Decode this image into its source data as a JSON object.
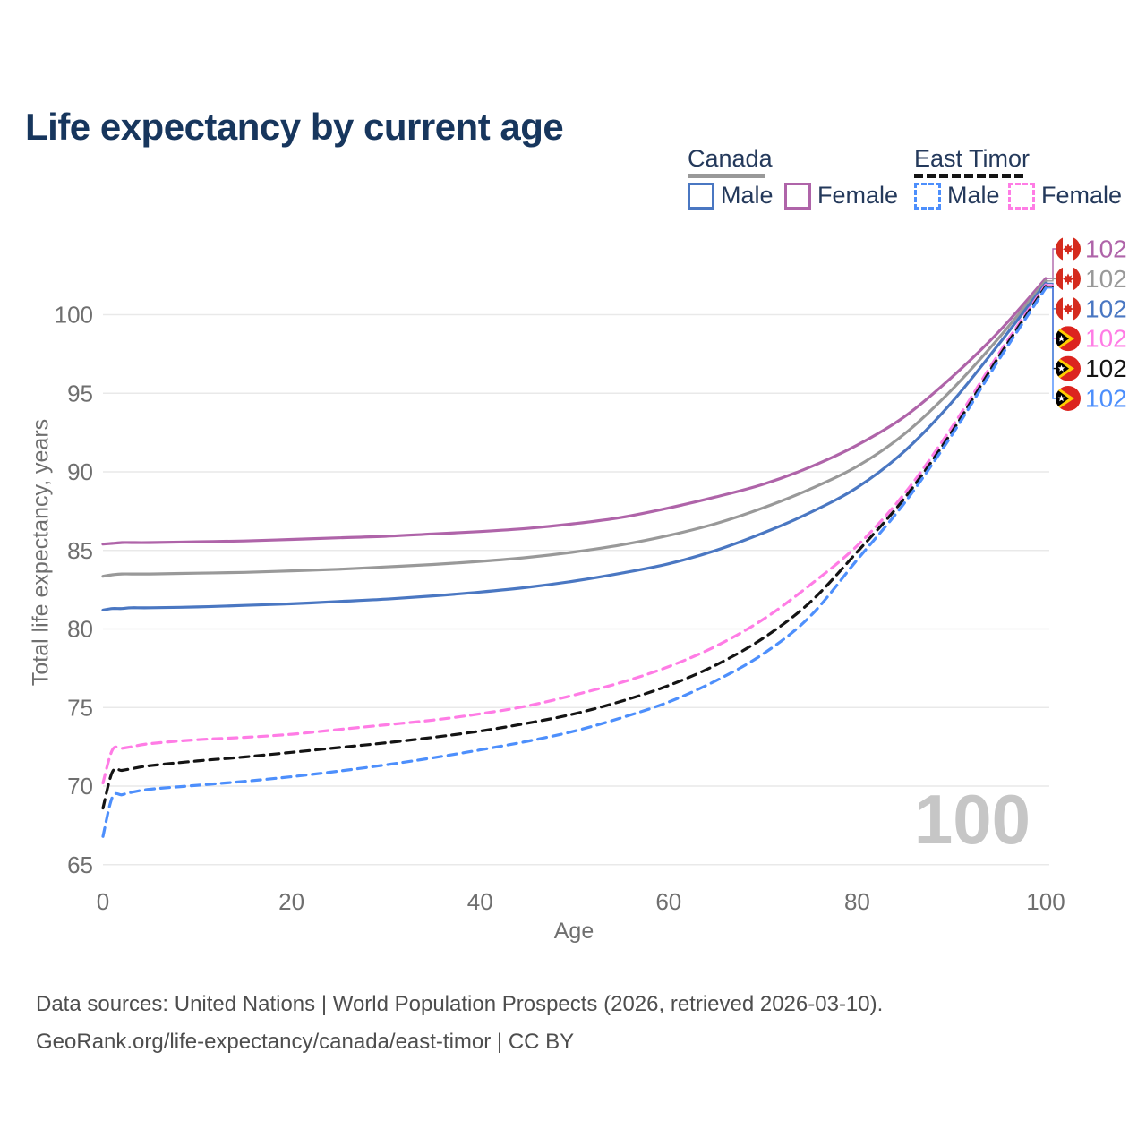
{
  "title": "Life expectancy by current age",
  "watermark": "100",
  "legend": {
    "groups": [
      {
        "label": "Canada",
        "style": "solid",
        "items": [
          {
            "label": "Male"
          },
          {
            "label": "Female"
          }
        ]
      },
      {
        "label": "East Timor",
        "style": "dashed",
        "items": [
          {
            "label": "Male"
          },
          {
            "label": "Female"
          }
        ]
      }
    ]
  },
  "colors": {
    "canada_male": "#4a77c2",
    "canada_female": "#af64a9",
    "canada_all": "#999999",
    "east_timor_male": "#4d8ffc",
    "east_timor_female": "#ff7ce5",
    "east_timor_all": "#141414",
    "title_text": "#17365d",
    "legend_text": "#24395b",
    "axis_text": "#6f6f6f",
    "grid": "#e9e9e9",
    "footer_text": "#4e4e4e",
    "watermark": "#c6c6c6",
    "flag_red_canada": "#d52b1e",
    "flag_red_east_timor": "#dc241f",
    "flag_yellow_east_timor": "#ffce00"
  },
  "footer": {
    "line1": "Data sources: United Nations | World Population Prospects (2026, retrieved 2026-03-10).",
    "line2": "GeoRank.org/life-expectancy/canada/east-timor | CC BY"
  },
  "chart_data": {
    "type": "line",
    "title": "Life expectancy by current age",
    "xlabel": "Age",
    "ylabel": "Total life expectancy, years",
    "xlim": [
      0,
      100
    ],
    "ylim": [
      65,
      103
    ],
    "x_ticks": [
      0,
      20,
      40,
      60,
      80,
      100
    ],
    "y_ticks": [
      65,
      70,
      75,
      80,
      85,
      90,
      95,
      100
    ],
    "grid": "horizontal-only",
    "legend_position": "top-right",
    "highlighted_age": "100",
    "ages": [
      0,
      1,
      2,
      3,
      5,
      10,
      15,
      20,
      25,
      30,
      35,
      40,
      45,
      50,
      55,
      60,
      65,
      70,
      75,
      80,
      85,
      90,
      95,
      100
    ],
    "series": [
      {
        "name": "Canada Female",
        "country": "Canada",
        "sex": "Female",
        "style": "solid",
        "color": "#af64a9",
        "flag": "canada",
        "end_label": "102",
        "values": [
          85.4,
          85.45,
          85.5,
          85.5,
          85.5,
          85.55,
          85.6,
          85.7,
          85.8,
          85.9,
          86.05,
          86.2,
          86.4,
          86.7,
          87.1,
          87.7,
          88.4,
          89.2,
          90.3,
          91.7,
          93.5,
          96.0,
          98.9,
          102.3
        ]
      },
      {
        "name": "Canada All",
        "country": "Canada",
        "sex": "All",
        "style": "solid",
        "color": "#999999",
        "flag": "canada",
        "end_label": "102",
        "values": [
          83.35,
          83.45,
          83.5,
          83.5,
          83.5,
          83.55,
          83.6,
          83.7,
          83.8,
          83.95,
          84.1,
          84.3,
          84.55,
          84.9,
          85.35,
          85.95,
          86.7,
          87.7,
          88.9,
          90.35,
          92.4,
          95.2,
          98.5,
          102.15
        ]
      },
      {
        "name": "Canada Male",
        "country": "Canada",
        "sex": "Male",
        "style": "solid",
        "color": "#4a77c2",
        "flag": "canada",
        "end_label": "102",
        "values": [
          81.2,
          81.3,
          81.3,
          81.35,
          81.35,
          81.4,
          81.5,
          81.6,
          81.75,
          81.9,
          82.1,
          82.35,
          82.65,
          83.05,
          83.55,
          84.15,
          85.0,
          86.1,
          87.4,
          89.0,
          91.3,
          94.4,
          98.1,
          102.0
        ]
      },
      {
        "name": "East Timor Female",
        "country": "East Timor",
        "sex": "Female",
        "style": "dashed",
        "color": "#ff7ce5",
        "flag": "east_timor",
        "end_label": "102",
        "values": [
          70.2,
          72.3,
          72.4,
          72.5,
          72.7,
          72.95,
          73.1,
          73.3,
          73.6,
          73.9,
          74.2,
          74.6,
          75.1,
          75.8,
          76.6,
          77.6,
          78.9,
          80.6,
          82.8,
          85.3,
          88.6,
          92.8,
          97.5,
          101.9
        ]
      },
      {
        "name": "East Timor All",
        "country": "East Timor",
        "sex": "All",
        "style": "dashed",
        "color": "#141414",
        "flag": "east_timor",
        "end_label": "102",
        "values": [
          68.6,
          70.9,
          71.0,
          71.1,
          71.3,
          71.6,
          71.85,
          72.15,
          72.45,
          72.75,
          73.1,
          73.5,
          74.0,
          74.6,
          75.4,
          76.4,
          77.7,
          79.4,
          81.7,
          84.9,
          88.3,
          92.5,
          97.3,
          101.8
        ]
      },
      {
        "name": "East Timor Male",
        "country": "East Timor",
        "sex": "Male",
        "style": "dashed",
        "color": "#4d8ffc",
        "flag": "east_timor",
        "end_label": "102",
        "values": [
          66.8,
          69.3,
          69.45,
          69.6,
          69.8,
          70.05,
          70.3,
          70.6,
          70.95,
          71.35,
          71.8,
          72.3,
          72.85,
          73.5,
          74.35,
          75.35,
          76.7,
          78.4,
          80.8,
          84.4,
          88.0,
          92.3,
          97.1,
          101.7
        ]
      }
    ]
  }
}
